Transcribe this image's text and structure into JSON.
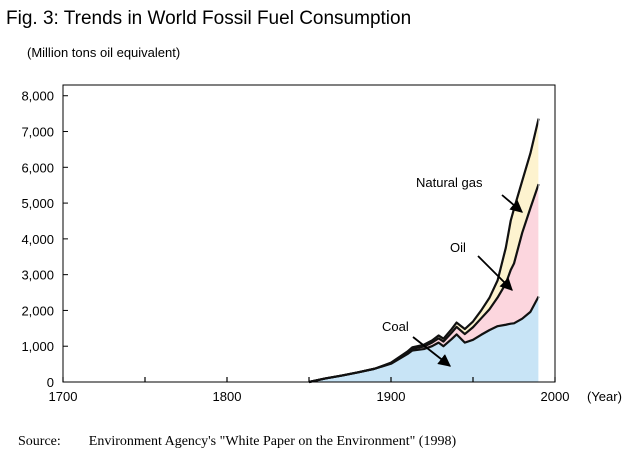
{
  "figure": {
    "title": "Fig. 3: Trends in World Fossil Fuel Consumption",
    "unit_label": "(Million tons oil equivalent)",
    "source_label": "Source:",
    "source_text": "Environment Agency's \"White Paper on the Environment\" (1998)"
  },
  "chart_data": {
    "type": "area",
    "stacked": true,
    "x_unit_label": "(Year)",
    "xlim": [
      1700,
      2000
    ],
    "ylim": [
      0,
      8300
    ],
    "x_ticks": [
      1700,
      1800,
      1900,
      2000
    ],
    "x_minor_ticks": [
      1750,
      1850,
      1950
    ],
    "x_tick_labels": [
      "1700",
      "1800",
      "1900",
      "2000"
    ],
    "y_ticks": [
      0,
      1000,
      2000,
      3000,
      4000,
      5000,
      6000,
      7000,
      8000
    ],
    "y_tick_labels": [
      "0",
      "1,000",
      "2,000",
      "3,000",
      "4,000",
      "5,000",
      "6,000",
      "7,000",
      "8,000"
    ],
    "grid": false,
    "legend": "none",
    "x": [
      1850,
      1860,
      1870,
      1880,
      1890,
      1900,
      1910,
      1913,
      1920,
      1925,
      1929,
      1932,
      1937,
      1940,
      1945,
      1950,
      1955,
      1960,
      1965,
      1970,
      1973,
      1975,
      1980,
      1985,
      1990
    ],
    "series": [
      {
        "name": "Coal",
        "color": "#c8e4f6",
        "values": [
          0,
          100,
          180,
          270,
          370,
          510,
          780,
          880,
          920,
          1000,
          1100,
          1000,
          1200,
          1330,
          1100,
          1180,
          1320,
          1450,
          1560,
          1600,
          1630,
          1640,
          1770,
          1960,
          2390
        ]
      },
      {
        "name": "Oil",
        "color": "#fcd6de",
        "values": [
          0,
          0,
          0,
          0,
          0,
          20,
          40,
          50,
          70,
          100,
          120,
          130,
          180,
          210,
          240,
          350,
          460,
          580,
          800,
          1150,
          1500,
          1670,
          2400,
          2900,
          3140
        ]
      },
      {
        "name": "Natural gas",
        "color": "#fdf3cf",
        "values": [
          0,
          0,
          0,
          0,
          0,
          10,
          30,
          40,
          50,
          60,
          80,
          80,
          100,
          120,
          140,
          160,
          220,
          320,
          480,
          1000,
          1380,
          1530,
          1450,
          1530,
          1830
        ]
      }
    ],
    "annotations": [
      {
        "text": "Natural gas",
        "target_series": "Natural gas"
      },
      {
        "text": "Oil",
        "target_series": "Oil"
      },
      {
        "text": "Coal",
        "target_series": "Coal"
      }
    ]
  }
}
